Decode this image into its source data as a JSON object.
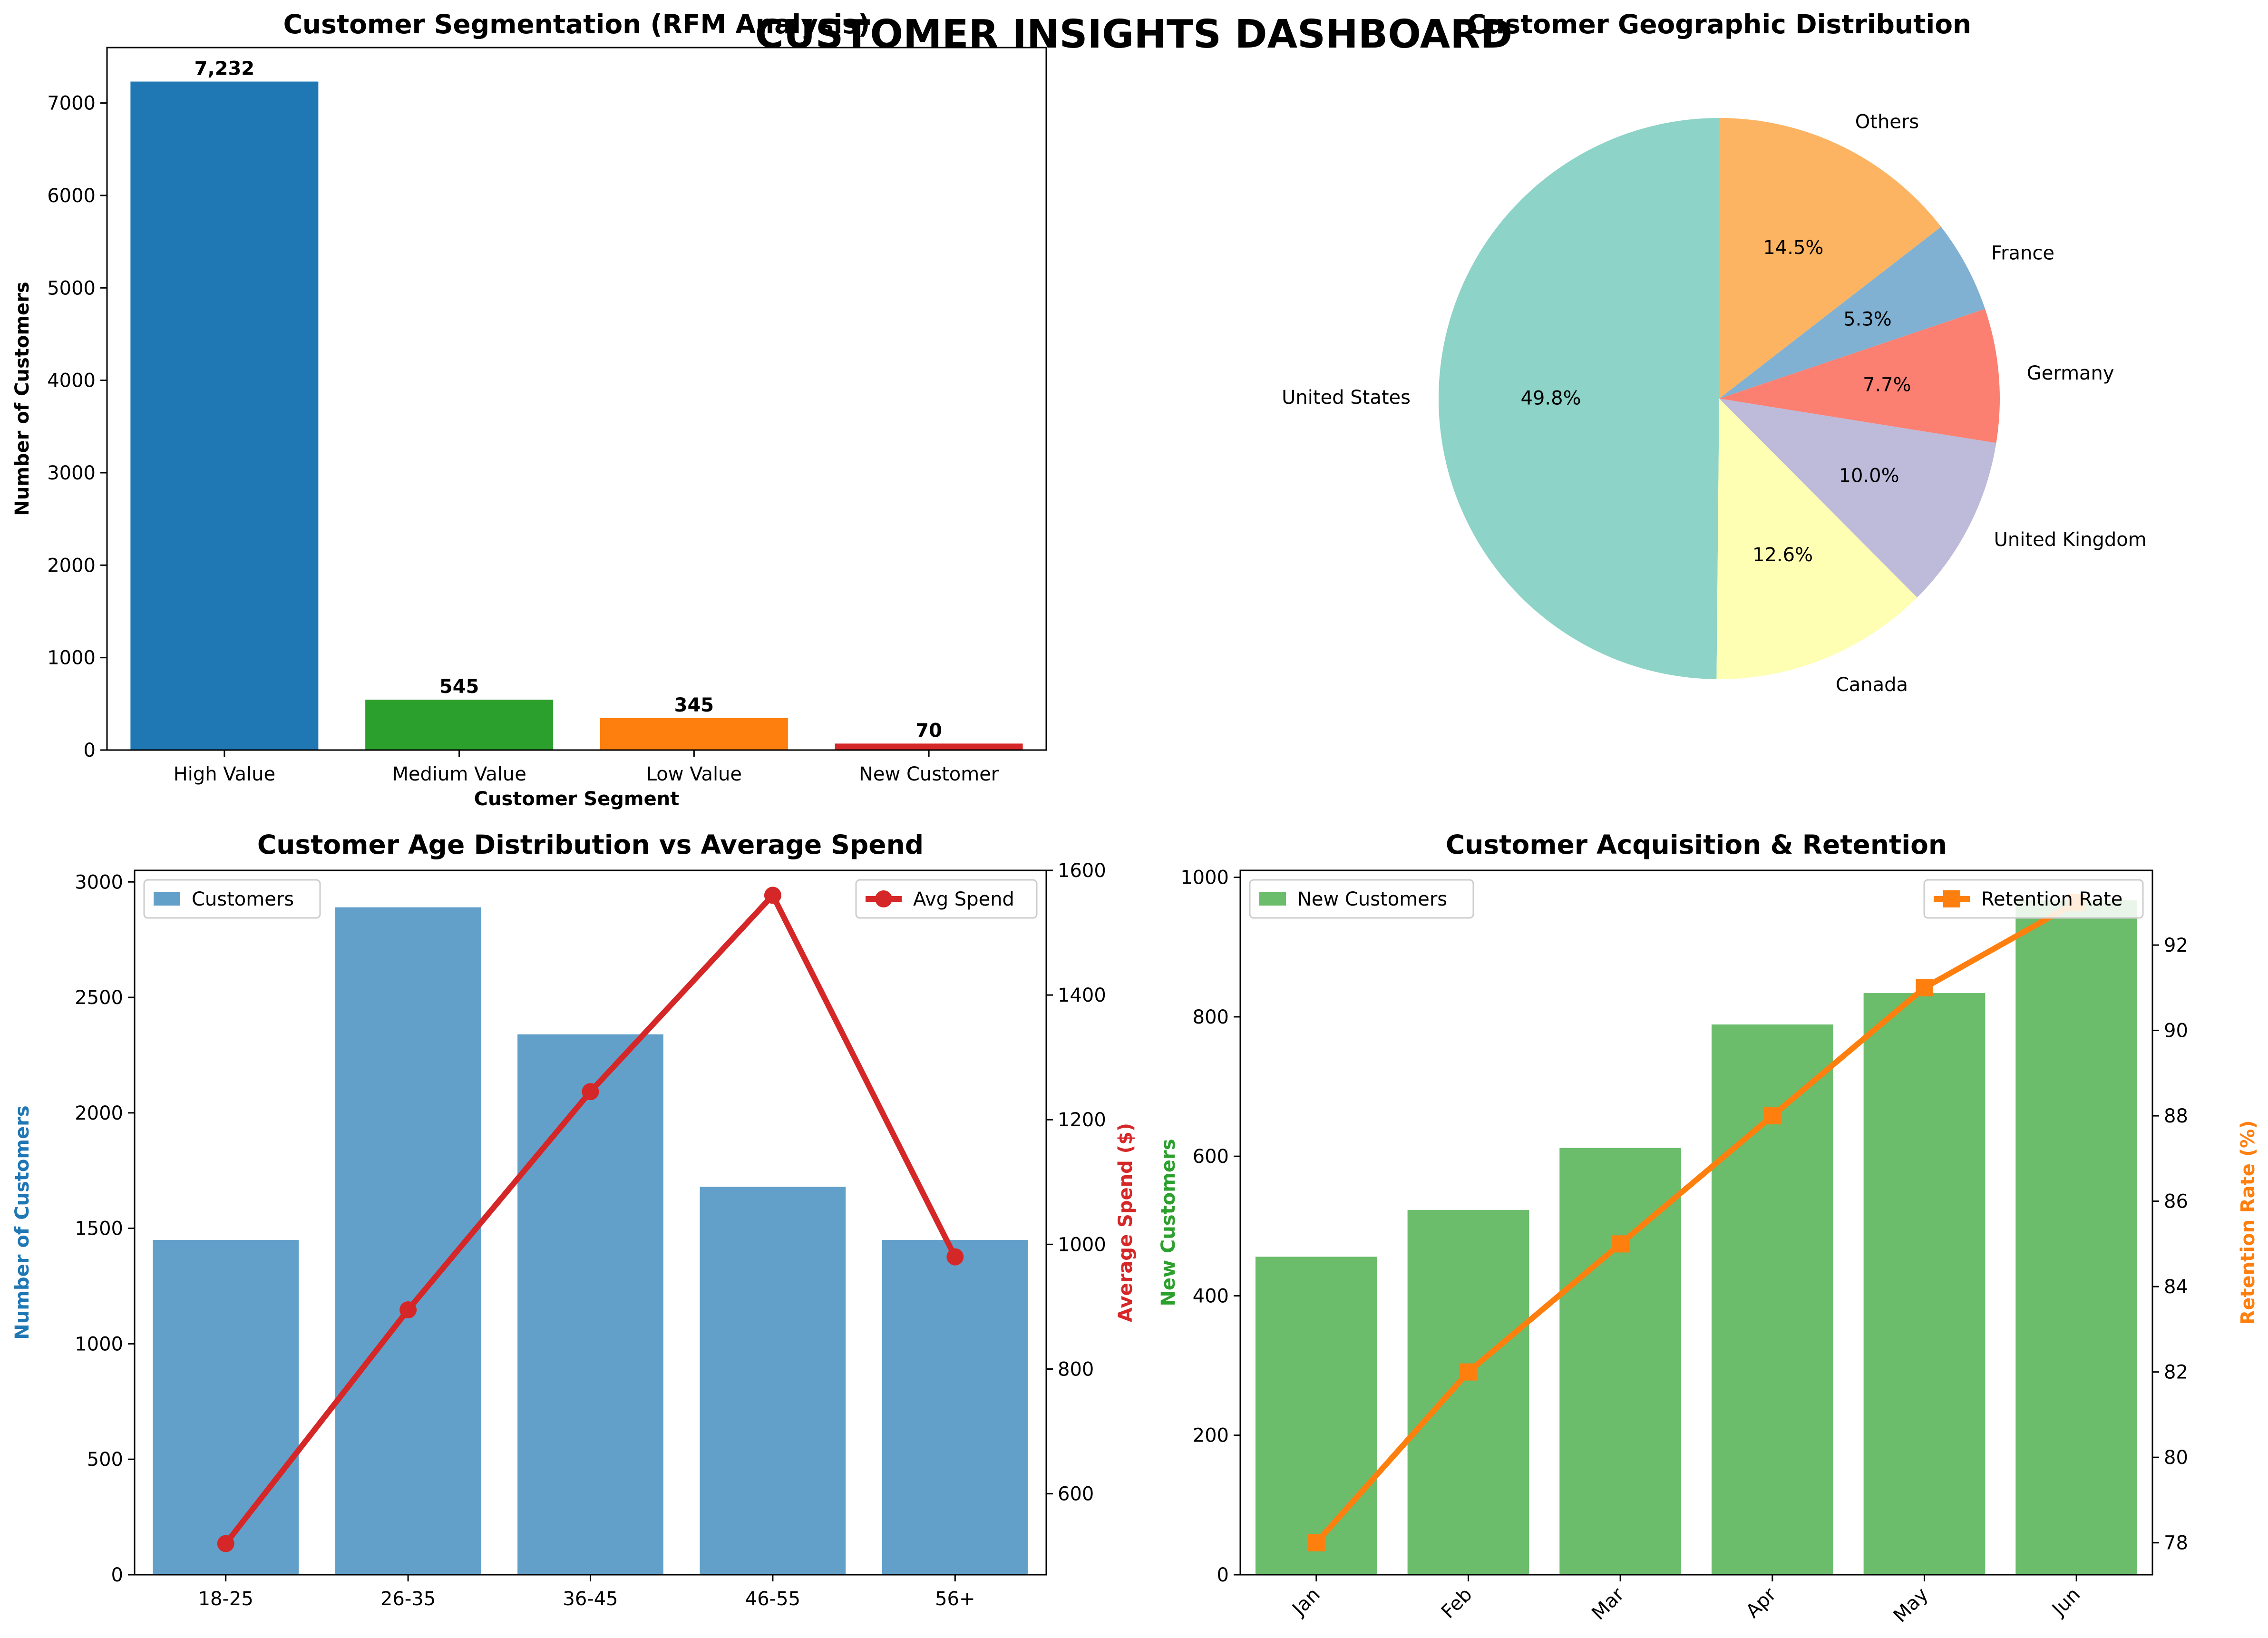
{
  "title": "CUSTOMER INSIGHTS DASHBOARD",
  "chart_data": [
    {
      "type": "bar",
      "title": "Customer Segmentation (RFM Analysis)",
      "xlabel": "Customer Segment",
      "ylabel": "Number of Customers",
      "categories": [
        "High Value",
        "Medium Value",
        "Low Value",
        "New Customer"
      ],
      "values": [
        7232,
        545,
        345,
        70
      ],
      "value_labels": [
        "7,232",
        "545",
        "345",
        "70"
      ],
      "colors": [
        "#1f77b4",
        "#2ca02c",
        "#ff7f0e",
        "#d62728"
      ],
      "ylim": [
        0,
        7600
      ],
      "yticks": [
        0,
        1000,
        2000,
        3000,
        4000,
        5000,
        6000,
        7000
      ],
      "grid": false
    },
    {
      "type": "pie",
      "title": "Customer Geographic Distribution",
      "labels": [
        "United States",
        "Canada",
        "United Kingdom",
        "Germany",
        "France",
        "Others"
      ],
      "values": [
        49.8,
        12.6,
        10.0,
        7.7,
        5.3,
        14.5
      ],
      "pct_labels": [
        "49.8%",
        "12.6%",
        "10.0%",
        "7.7%",
        "5.3%",
        "14.5%"
      ],
      "colors": [
        "#8dd3c7",
        "#ffffb3",
        "#bebada",
        "#fb8072",
        "#80b1d3",
        "#fdb462"
      ]
    },
    {
      "type": "bar",
      "title": "Customer Age Distribution vs Average Spend",
      "categories": [
        "18-25",
        "26-35",
        "36-45",
        "46-55",
        "56+"
      ],
      "ylabel": "Number of Customers",
      "y2label": "Average Spend ($)",
      "ylim": [
        0,
        3050
      ],
      "yticks": [
        0,
        500,
        1000,
        1500,
        2000,
        2500,
        3000
      ],
      "y2lim": [
        470,
        1600
      ],
      "y2ticks": [
        600,
        800,
        1000,
        1200,
        1400,
        1600
      ],
      "legend": "upper left / upper right",
      "series": [
        {
          "name": "Customers",
          "kind": "bar",
          "axis": "left",
          "color": "#1f77b4",
          "values": [
            1450,
            2890,
            2340,
            1680,
            1450
          ]
        },
        {
          "name": "Avg Spend",
          "kind": "line",
          "axis": "right",
          "color": "#d62728",
          "values": [
            520,
            895,
            1245,
            1560,
            980
          ]
        }
      ]
    },
    {
      "type": "bar",
      "title": "Customer Acquisition & Retention",
      "categories": [
        "Jan",
        "Feb",
        "Mar",
        "Apr",
        "May",
        "Jun"
      ],
      "ylabel": "New Customers",
      "y2label": "Retention Rate (%)",
      "ylim": [
        0,
        1010
      ],
      "yticks": [
        0,
        200,
        400,
        600,
        800,
        1000
      ],
      "y2lim": [
        77.25,
        93.75
      ],
      "y2ticks": [
        78,
        80,
        82,
        84,
        86,
        88,
        90,
        92
      ],
      "legend": "upper left / upper right",
      "series": [
        {
          "name": "New Customers",
          "kind": "bar",
          "axis": "left",
          "color": "#2ca02c",
          "values": [
            456,
            523,
            612,
            789,
            834,
            967
          ]
        },
        {
          "name": "Retention Rate",
          "kind": "line",
          "axis": "right",
          "color": "#ff7f0e",
          "values": [
            78,
            82,
            85,
            88,
            91,
            93
          ]
        }
      ]
    }
  ]
}
